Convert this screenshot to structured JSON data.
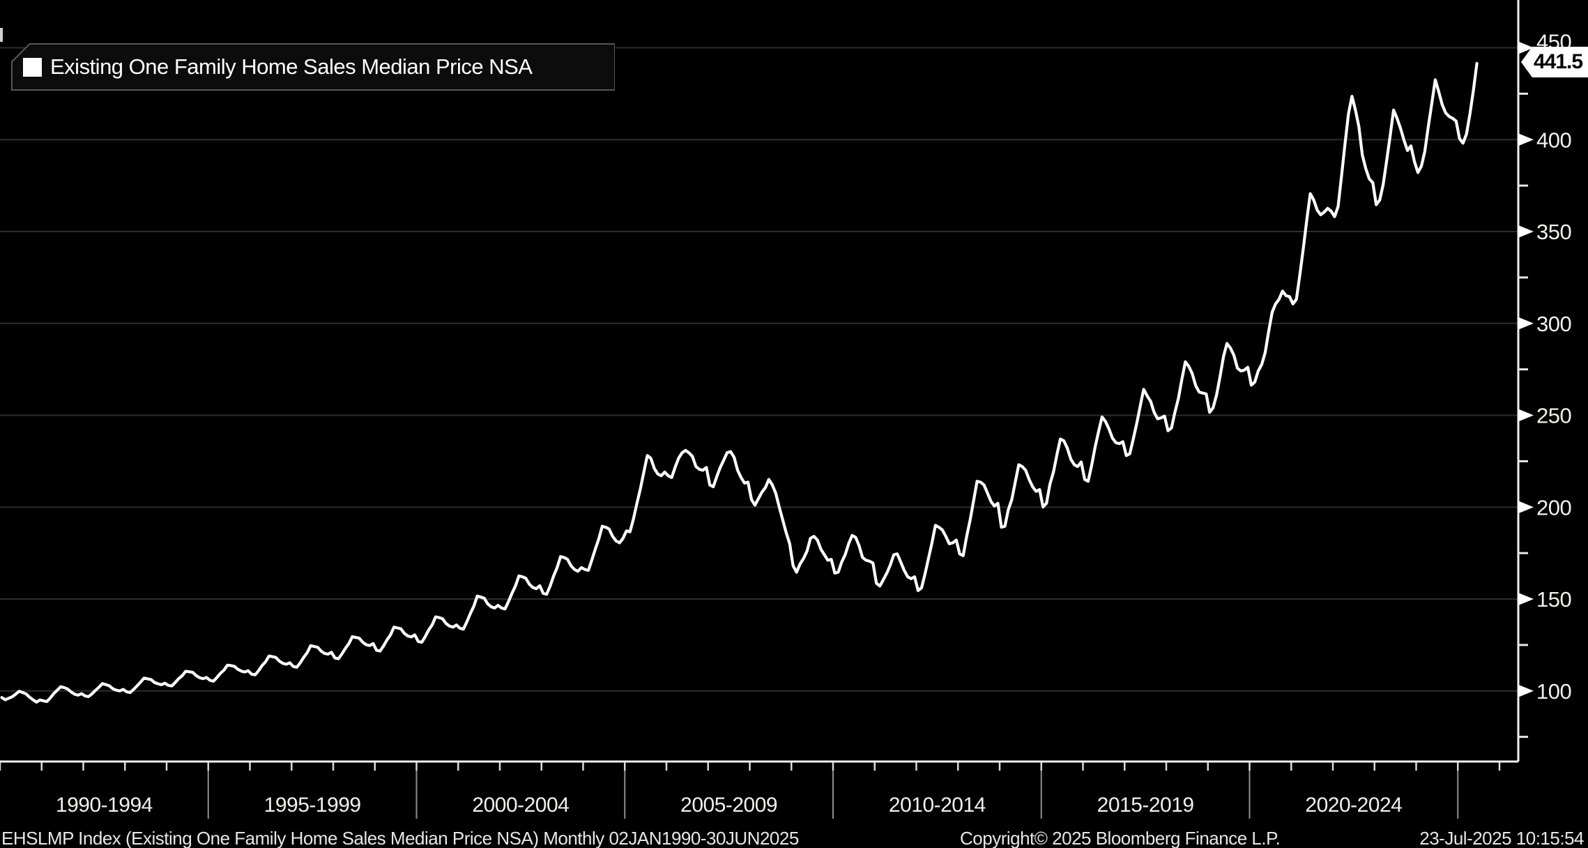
{
  "window": {
    "background": "#000000"
  },
  "legend": {
    "series_label": "Existing One Family Home Sales Median Price NSA",
    "swatch_color": "#ffffff"
  },
  "last_price": {
    "label": "441.5"
  },
  "status_bar": {
    "left": "EHSLMP Index (Existing One Family Home Sales Median Price NSA)  Monthly 02JAN1990-30JUN2025",
    "copyright": "Copyright© 2025 Bloomberg Finance L.P.",
    "timestamp": "23-Jul-2025 10:15:54"
  },
  "chart_data": {
    "type": "line",
    "title": "Existing One Family Home Sales Median Price NSA",
    "series_name": "EHSLMP Index",
    "frequency": "Monthly",
    "period": "02JAN1990-30JUN2025",
    "start_month": "1990-01",
    "end_month": "2025-06",
    "last_price": 441.5,
    "line_color": "#ffffff",
    "grid_color": "#2d2d2d",
    "axis_color": "#f0f0f0",
    "legend_position": "top-left",
    "grid": "horizontal-only",
    "y_axis_side": "right",
    "y_ticks": [
      450,
      400,
      350,
      300,
      250,
      200,
      150,
      100
    ],
    "y_minor_ticks": [
      425,
      375,
      325,
      275,
      225,
      175,
      125,
      75
    ],
    "ylim_visible": [
      56,
      476
    ],
    "x_group_labels": [
      {
        "label": "1990-1994",
        "center_year": 1992.5
      },
      {
        "label": "1995-1999",
        "center_year": 1997.5
      },
      {
        "label": "2000-2004",
        "center_year": 2002.5
      },
      {
        "label": "2005-2009",
        "center_year": 2007.5
      },
      {
        "label": "2010-2014",
        "center_year": 2012.5
      },
      {
        "label": "2015-2019",
        "center_year": 2017.5
      },
      {
        "label": "2020-2024",
        "center_year": 2022.5
      }
    ],
    "divider_years": [
      1995,
      2000,
      2005,
      2010,
      2015,
      2020,
      2025
    ],
    "monthly_values": [
      96.4,
      95.2,
      96.0,
      96.8,
      98.2,
      99.8,
      99.2,
      98.4,
      96.6,
      95.2,
      93.9,
      95.1,
      94.6,
      94.2,
      96.2,
      98.6,
      100.4,
      102.3,
      101.8,
      101.0,
      99.4,
      98.2,
      97.7,
      98.5,
      97.3,
      96.9,
      98.4,
      100.3,
      102.0,
      104.0,
      103.4,
      102.8,
      101.2,
      100.4,
      100.0,
      100.8,
      99.5,
      99.1,
      100.8,
      102.8,
      104.8,
      107.0,
      106.6,
      106.2,
      104.6,
      103.9,
      103.4,
      104.2,
      103.0,
      102.7,
      104.6,
      106.7,
      108.3,
      110.7,
      110.4,
      110.1,
      108.4,
      107.2,
      106.7,
      107.3,
      105.8,
      105.3,
      107.3,
      109.6,
      111.3,
      114.0,
      113.8,
      113.4,
      111.8,
      110.8,
      110.3,
      111.0,
      109.1,
      108.8,
      111.0,
      113.8,
      115.8,
      119.0,
      118.6,
      118.2,
      116.2,
      115.0,
      114.5,
      115.3,
      113.3,
      112.9,
      115.3,
      118.3,
      120.8,
      124.6,
      124.2,
      123.8,
      121.7,
      120.4,
      120.0,
      121.0,
      117.9,
      117.5,
      120.1,
      123.1,
      125.7,
      129.5,
      129.1,
      128.7,
      126.5,
      125.1,
      124.7,
      125.8,
      122.1,
      121.7,
      124.5,
      127.8,
      130.5,
      134.7,
      134.3,
      133.8,
      131.3,
      129.9,
      129.4,
      130.5,
      126.9,
      126.5,
      129.5,
      133.1,
      135.9,
      140.3,
      139.9,
      139.3,
      136.7,
      135.3,
      134.7,
      135.9,
      134.1,
      133.6,
      137.6,
      142.1,
      146.1,
      151.6,
      151.1,
      150.4,
      147.4,
      145.8,
      145.1,
      146.6,
      145.1,
      144.6,
      148.6,
      153.1,
      157.1,
      162.6,
      162.1,
      161.3,
      158.1,
      156.3,
      155.6,
      157.3,
      153.1,
      152.6,
      157.1,
      162.6,
      167.1,
      173.1,
      172.6,
      171.6,
      168.1,
      166.1,
      165.1,
      167.1,
      166.1,
      165.6,
      171.1,
      177.1,
      182.6,
      189.6,
      189.1,
      188.1,
      184.1,
      181.6,
      180.6,
      183.1,
      187.1,
      186.6,
      193.6,
      202.1,
      210.1,
      219.1,
      228.1,
      226.6,
      221.1,
      218.1,
      217.1,
      219.1,
      217.1,
      216.1,
      221.6,
      226.6,
      229.6,
      230.9,
      229.6,
      227.6,
      222.1,
      220.6,
      220.1,
      221.6,
      212.1,
      211.1,
      216.6,
      221.6,
      225.6,
      229.7,
      230.2,
      227.1,
      220.1,
      216.1,
      213.1,
      213.6,
      204.1,
      201.1,
      204.6,
      208.1,
      210.6,
      215.1,
      212.1,
      207.6,
      200.1,
      193.1,
      186.1,
      180.1,
      168.1,
      164.6,
      169.1,
      172.1,
      176.1,
      183.1,
      184.1,
      182.1,
      177.1,
      174.1,
      171.1,
      171.6,
      164.1,
      164.6,
      170.1,
      174.1,
      180.1,
      184.6,
      183.6,
      179.1,
      172.6,
      171.1,
      170.6,
      169.6,
      158.6,
      157.1,
      160.6,
      164.1,
      168.6,
      174.1,
      174.6,
      170.1,
      165.6,
      162.1,
      161.1,
      162.1,
      154.6,
      156.1,
      163.6,
      172.1,
      180.6,
      190.1,
      189.1,
      187.6,
      184.1,
      180.1,
      180.6,
      182.1,
      174.6,
      173.6,
      184.1,
      193.1,
      203.6,
      214.1,
      213.6,
      212.1,
      207.6,
      203.1,
      200.6,
      202.1,
      189.1,
      189.6,
      198.6,
      204.1,
      213.6,
      223.1,
      222.1,
      220.1,
      215.1,
      211.1,
      208.6,
      209.6,
      200.1,
      202.1,
      212.6,
      219.1,
      228.6,
      237.1,
      236.1,
      232.1,
      226.1,
      223.1,
      222.1,
      224.6,
      215.1,
      214.1,
      222.6,
      232.6,
      241.1,
      249.1,
      246.6,
      242.6,
      237.6,
      235.1,
      234.6,
      235.6,
      228.1,
      229.1,
      237.1,
      245.6,
      255.1,
      264.1,
      260.6,
      257.6,
      251.6,
      248.1,
      248.6,
      249.6,
      241.6,
      243.1,
      251.6,
      259.1,
      269.6,
      279.1,
      276.6,
      272.6,
      266.1,
      262.6,
      262.1,
      261.6,
      251.6,
      254.1,
      261.1,
      271.1,
      282.1,
      289.1,
      286.6,
      282.6,
      275.6,
      274.1,
      274.6,
      276.1,
      266.4,
      268.1,
      274.1,
      277.6,
      284.1,
      295.6,
      306.1,
      310.6,
      313.1,
      317.6,
      315.1,
      314.6,
      310.6,
      313.1,
      326.6,
      341.1,
      356.6,
      370.6,
      367.1,
      361.6,
      359.1,
      360.6,
      362.6,
      361.1,
      358.1,
      363.6,
      380.1,
      397.6,
      414.1,
      423.6,
      416.1,
      407.1,
      391.6,
      384.1,
      378.6,
      376.6,
      364.6,
      367.1,
      375.6,
      388.6,
      402.1,
      416.1,
      411.6,
      406.1,
      399.6,
      394.1,
      396.6,
      388.1,
      382.1,
      385.6,
      393.6,
      407.1,
      419.6,
      432.6,
      426.1,
      419.1,
      414.6,
      412.6,
      411.6,
      410.1,
      400.6,
      398.1,
      403.1,
      414.1,
      427.1,
      441.5
    ]
  }
}
